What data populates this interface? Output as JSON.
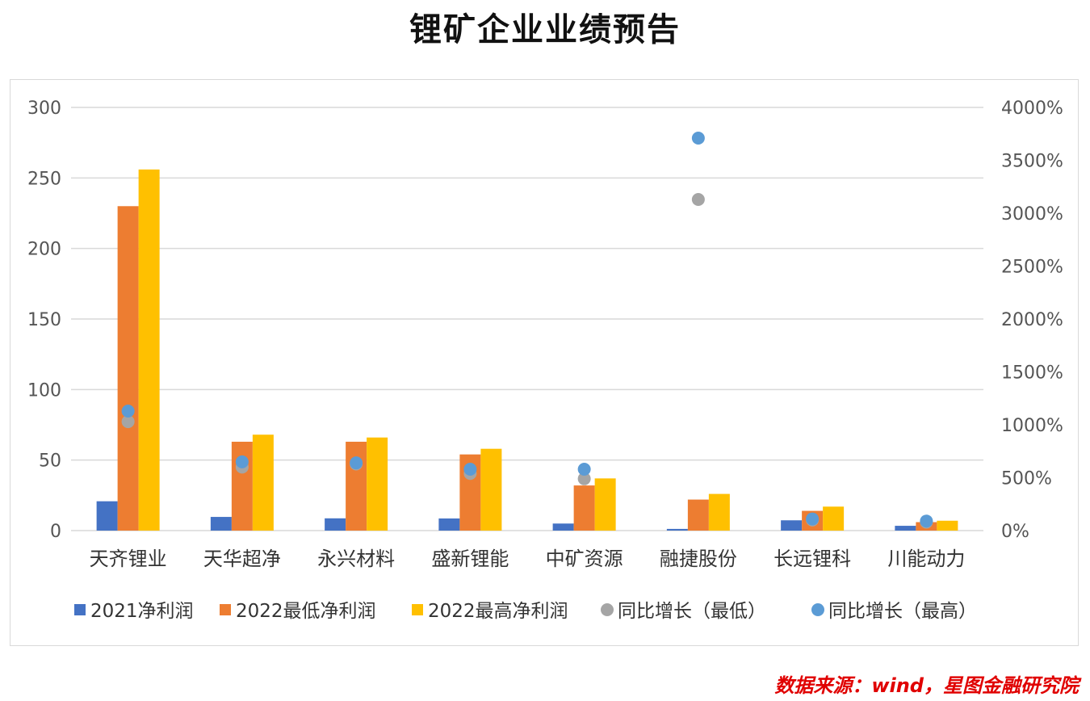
{
  "title": "锂矿企业业绩预告",
  "source": "数据来源：wind，星图金融研究院",
  "colors": {
    "net2021": "#4472c4",
    "min2022": "#ed7d31",
    "max2022": "#ffc000",
    "growth_min": "#a5a5a5",
    "growth_max": "#5b9bd5",
    "grid": "#d9d9d9"
  },
  "chart_data": {
    "type": "bar",
    "title": "锂矿企业业绩预告",
    "categories": [
      "天齐锂业",
      "天华超净",
      "永兴材料",
      "盛新锂能",
      "中矿资源",
      "融捷股份",
      "长远锂科",
      "川能动力"
    ],
    "series": [
      {
        "name": "2021净利润",
        "type": "bar",
        "axis": "left",
        "values": [
          20.8,
          9.7,
          8.7,
          8.6,
          5.0,
          1.2,
          7.3,
          3.4
        ]
      },
      {
        "name": "2022最低净利润",
        "type": "bar",
        "axis": "left",
        "values": [
          230,
          63,
          63,
          54,
          32,
          22,
          14,
          6
        ]
      },
      {
        "name": "2022最高净利润",
        "type": "bar",
        "axis": "left",
        "values": [
          256,
          68,
          66,
          58,
          37,
          26,
          17,
          7
        ]
      },
      {
        "name": "同比增长（最低）",
        "type": "scatter",
        "axis": "right",
        "values": [
          1030,
          600,
          630,
          540,
          490,
          3130,
          100,
          80
        ]
      },
      {
        "name": "同比增长（最高）",
        "type": "scatter",
        "axis": "right",
        "values": [
          1130,
          650,
          640,
          580,
          580,
          3710,
          110,
          90
        ]
      }
    ],
    "ylim_left": [
      0,
      300
    ],
    "yticks_left": [
      "0",
      "50",
      "100",
      "150",
      "200",
      "250",
      "300"
    ],
    "ylim_right": [
      0,
      4000
    ],
    "yticks_right": [
      "0%",
      "500%",
      "1000%",
      "1500%",
      "2000%",
      "2500%",
      "3000%",
      "3500%",
      "4000%"
    ],
    "grid": true,
    "legend_position": "bottom"
  }
}
